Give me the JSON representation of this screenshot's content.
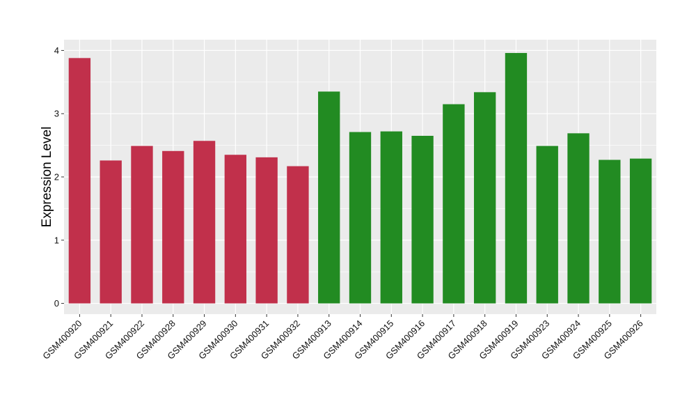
{
  "chart_data": {
    "type": "bar",
    "title": "",
    "xlabel": "",
    "ylabel": "Expression Level",
    "ylim": [
      -0.17,
      4.17
    ],
    "yticks": [
      0,
      1,
      2,
      3,
      4
    ],
    "grid": true,
    "legend": "none",
    "panel_background": "#ebebeb",
    "grid_color": "#ffffff",
    "categories": [
      "GSM400920",
      "GSM400921",
      "GSM400922",
      "GSM400928",
      "GSM400929",
      "GSM400930",
      "GSM400931",
      "GSM400932",
      "GSM400913",
      "GSM400914",
      "GSM400915",
      "GSM400916",
      "GSM400917",
      "GSM400918",
      "GSM400919",
      "GSM400923",
      "GSM400924",
      "GSM400925",
      "GSM400926"
    ],
    "values": [
      3.88,
      2.26,
      2.49,
      2.41,
      2.57,
      2.35,
      2.31,
      2.17,
      3.35,
      2.71,
      2.72,
      2.65,
      3.15,
      3.34,
      3.96,
      2.49,
      2.69,
      2.27,
      2.29
    ],
    "groups": [
      "red",
      "red",
      "red",
      "red",
      "red",
      "red",
      "red",
      "red",
      "green",
      "green",
      "green",
      "green",
      "green",
      "green",
      "green",
      "green",
      "green",
      "green",
      "green"
    ],
    "colors": {
      "red": "#c1304b",
      "green": "#228b22"
    }
  }
}
